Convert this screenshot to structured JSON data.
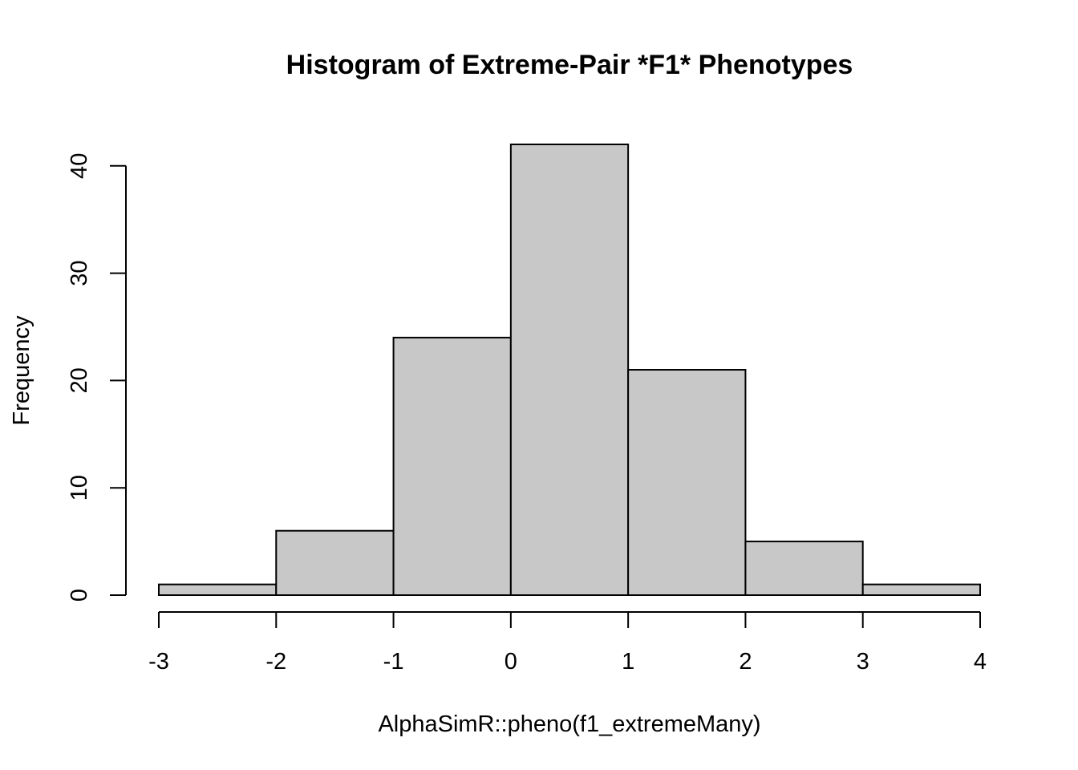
{
  "chart_data": {
    "type": "bar",
    "title": "Histogram of Extreme-Pair *F1* Phenotypes",
    "xlabel": "AlphaSimR::pheno(f1_extremeMany)",
    "ylabel": "Frequency",
    "bins": [
      {
        "start": -3,
        "end": -2,
        "count": 1
      },
      {
        "start": -2,
        "end": -1,
        "count": 6
      },
      {
        "start": -1,
        "end": 0,
        "count": 24
      },
      {
        "start": 0,
        "end": 1,
        "count": 42
      },
      {
        "start": 1,
        "end": 2,
        "count": 21
      },
      {
        "start": 2,
        "end": 3,
        "count": 5
      },
      {
        "start": 3,
        "end": 4,
        "count": 1
      }
    ],
    "xlim": [
      -3,
      4
    ],
    "ylim": [
      0,
      42
    ],
    "x_ticks": [
      "-3",
      "-2",
      "-1",
      "0",
      "1",
      "2",
      "3",
      "4"
    ],
    "y_ticks": [
      "0",
      "10",
      "20",
      "30",
      "40"
    ],
    "bar_fill": "#c8c8c8",
    "bar_border": "#000000",
    "grid": false,
    "legend": "none"
  }
}
